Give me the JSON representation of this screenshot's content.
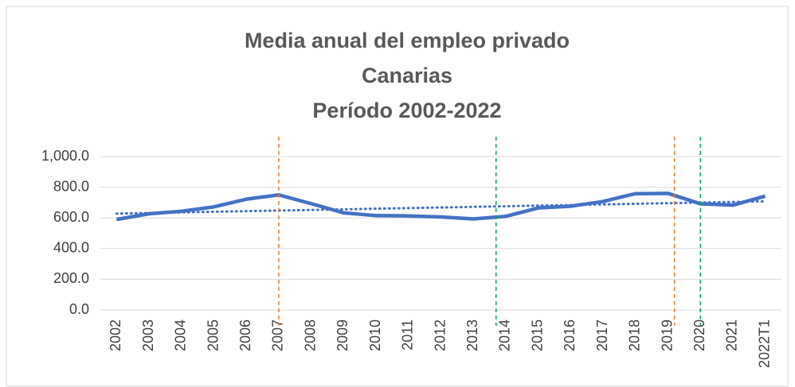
{
  "chart_data": {
    "type": "line",
    "title": [
      "Media anual del empleo privado",
      "Canarias",
      "Período 2002-2022"
    ],
    "categories": [
      "2002",
      "2003",
      "2004",
      "2005",
      "2006",
      "2007",
      "2008",
      "2009",
      "2010",
      "2011",
      "2012",
      "2013",
      "2014",
      "2015",
      "2016",
      "2017",
      "2018",
      "2019",
      "2020",
      "2021",
      "2022T1"
    ],
    "series": [
      {
        "color": "#4472c4",
        "values": [
          590,
          627,
          643,
          672,
          722,
          750,
          693,
          633,
          615,
          613,
          606,
          593,
          610,
          665,
          676,
          707,
          758,
          760,
          692,
          683,
          742
        ]
      }
    ],
    "trend": {
      "color": "#4472c4",
      "values": [
        628,
        708
      ]
    },
    "vlines": [
      {
        "x": 5,
        "color": "#ed7d31"
      },
      {
        "x": 11.7,
        "color": "#00b050"
      },
      {
        "x": 17.2,
        "color": "#ed7d31"
      },
      {
        "x": 18,
        "color": "#00b050"
      }
    ],
    "ylim": [
      0,
      1000
    ],
    "yticks": [
      {
        "value": 0,
        "label": "0.0"
      },
      {
        "value": 200,
        "label": "200.0"
      },
      {
        "value": 400,
        "label": "400.0"
      },
      {
        "value": 600,
        "label": "600.0"
      },
      {
        "value": 800,
        "label": "800.0"
      },
      {
        "value": 1000,
        "label": "1,000.0"
      }
    ],
    "grid": true
  }
}
